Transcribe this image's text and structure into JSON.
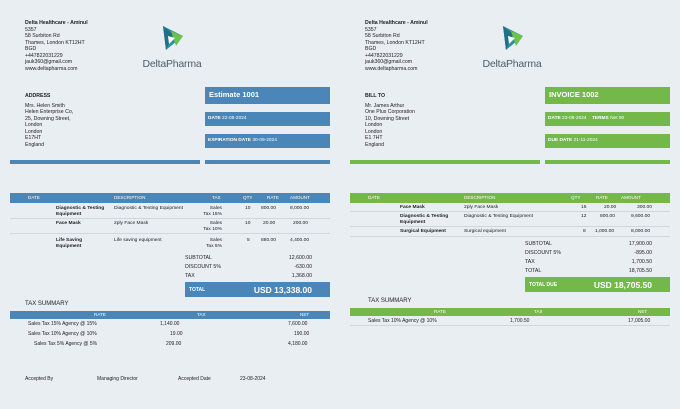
{
  "colors": {
    "left_accent": "#4a86b8",
    "right_accent": "#74b84a"
  },
  "company": {
    "name": "Delta Healthcare - Aminul",
    "lines": [
      "5357",
      "58 Surbiton Rd",
      "Thames, London  KT12HT",
      "BGD",
      "+447822031229",
      "jauk360@gmail.com",
      "www.deltapharma.com"
    ]
  },
  "brand": "DeltaPharma",
  "estimate": {
    "address": {
      "title": "ADDRESS",
      "lines": [
        "Mrs. Helen Smith",
        "Helen Enterprise Co,",
        "25, Downing Street,",
        "London",
        "London",
        "E17HT",
        "England"
      ]
    },
    "title": "Estimate 1001",
    "date_label": "DATE",
    "date_value": "22-08-2024",
    "exp_label": "EXPIRATION DATE",
    "exp_value": "30-09-2024",
    "headers": {
      "date": "DATE",
      "desc": "DESCRIPTION",
      "tax": "TAX",
      "qty": "QTY",
      "rate": "RATE",
      "amount": "AMOUNT"
    },
    "rows": [
      {
        "name1": "Diagnostic & Testing",
        "name2": "Equipment",
        "desc": "Diagnostic & Testing Equipment",
        "tax1": "Sales",
        "tax2": "Tax 15%",
        "qty": "10",
        "rate": "800.00",
        "amount": "8,000.00"
      },
      {
        "name1": "Face Mask",
        "name2": "",
        "desc": "2ply Face Mask",
        "tax1": "Sales",
        "tax2": "Tax 10%",
        "qty": "10",
        "rate": "20.00",
        "amount": "200.00"
      },
      {
        "name1": "Life Saving",
        "name2": "Equipment",
        "desc": "Life saving equipment",
        "tax1": "Sales",
        "tax2": "Tax 5%",
        "qty": "5",
        "rate": "880.00",
        "amount": "4,400.00"
      }
    ],
    "totals": [
      {
        "label": "SUBTOTAL",
        "value": "12,600.00"
      },
      {
        "label": "DISCOUNT  5%",
        "value": "-630.00"
      },
      {
        "label": "TAX",
        "value": "1,368.00"
      }
    ],
    "total_label": "TOTAL",
    "total_value": "USD 13,338.00",
    "tax_summary": {
      "title": "TAX SUMMARY",
      "headers": {
        "rate": "RATE",
        "tax": "TAX",
        "net": "NET"
      },
      "rows": [
        {
          "rate": "Sales Tax 15% Agency @ 15%",
          "tax": "1,140.00",
          "net": "7,600.00"
        },
        {
          "rate": "Sales Tax 10% Agency @ 10%",
          "tax": "19.00",
          "net": "190.00"
        },
        {
          "rate": "Sales Tax 5% Agency @ 5%",
          "tax": "209.00",
          "net": "4,180.00"
        }
      ]
    },
    "footer": {
      "accepted_by": "Accepted By",
      "director": "Managing Director",
      "accepted_date": "Accepted Date",
      "date": "23-08-2024"
    }
  },
  "invoice": {
    "address": {
      "title": "BILL TO",
      "lines": [
        "Mr. James Arthur",
        "One Plus Corporation",
        "10, Downing Street",
        "London",
        "London",
        "E1 7HT",
        "England"
      ]
    },
    "title": "INVOICE 1002",
    "date_label": "DATE",
    "date_value": "23-08-2024",
    "terms_label": "TERMS",
    "terms_value": "Net 90",
    "due_label": "DUE DATE",
    "due_value": "21-11-2024",
    "headers": {
      "date": "DATE",
      "desc": "DESCRIPTION",
      "qty": "QTY",
      "rate": "RATE",
      "amount": "AMOUNT"
    },
    "rows": [
      {
        "name1": "Face Mask",
        "name2": "",
        "desc": "2ply Face Mask",
        "qty": "15",
        "rate": "20.00",
        "amount": "300.00"
      },
      {
        "name1": "Diagnostic & Testing",
        "name2": "Equipment",
        "desc": "Diagnostic & Testing Equipment",
        "qty": "12",
        "rate": "800.00",
        "amount": "9,600.00"
      },
      {
        "name1": "Surgical Equipment",
        "name2": "",
        "desc": "Surgical equipment",
        "qty": "8",
        "rate": "1,000.00",
        "amount": "8,000.00"
      }
    ],
    "totals": [
      {
        "label": "SUBTOTAL",
        "value": "17,900.00"
      },
      {
        "label": "DISCOUNT  5%",
        "value": "-895.00"
      },
      {
        "label": "TAX",
        "value": "1,700.50"
      },
      {
        "label": "TOTAL",
        "value": "18,705.50"
      }
    ],
    "total_label": "TOTAL DUE",
    "total_value": "USD 18,705.50",
    "tax_summary": {
      "title": "TAX SUMMARY",
      "headers": {
        "rate": "RATE",
        "tax": "TAX",
        "net": "NET"
      },
      "rows": [
        {
          "rate": "Sales Tax 10% Agency @ 10%",
          "tax": "1,700.50",
          "net": "17,005.00"
        }
      ]
    }
  }
}
